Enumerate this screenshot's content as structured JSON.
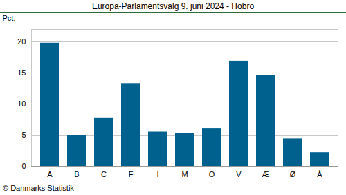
{
  "chart_data": {
    "type": "bar",
    "title": "Europa-Parlamentsvalg 9. juni 2024 - Hobro",
    "y_label": "Pct.",
    "caption": "© Danmarks Statistik",
    "categories": [
      "A",
      "B",
      "C",
      "F",
      "I",
      "M",
      "O",
      "V",
      "Æ",
      "Ø",
      "Å"
    ],
    "values": [
      19.8,
      5.0,
      7.8,
      13.3,
      5.5,
      5.3,
      6.1,
      16.9,
      14.6,
      4.4,
      2.2
    ],
    "color": "#00618f",
    "ylim": [
      0,
      22
    ],
    "yticks": [
      0,
      5,
      10,
      15,
      20
    ],
    "grid": true
  }
}
